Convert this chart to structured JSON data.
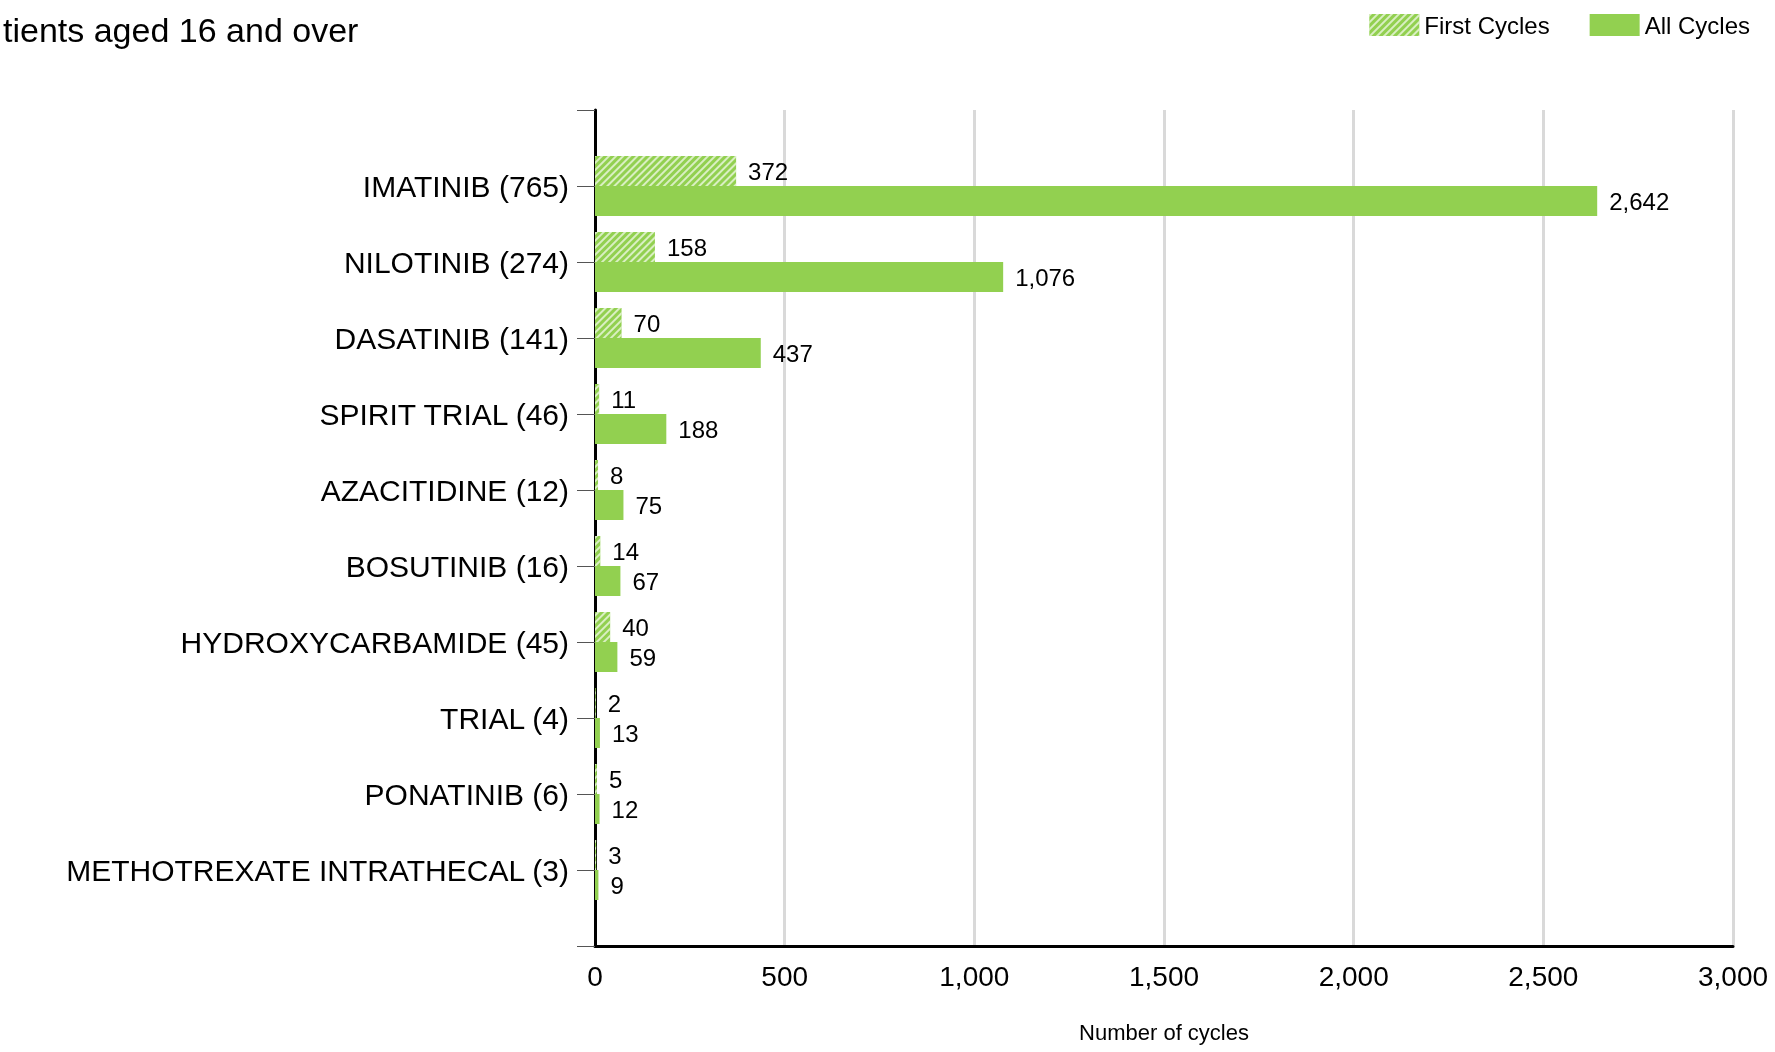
{
  "chart_data": {
    "type": "bar",
    "orientation": "horizontal",
    "title": "tients aged 16 and over",
    "xlabel": "Number of cycles",
    "categories": [
      "IMATINIB (765)",
      "NILOTINIB (274)",
      "DASATINIB (141)",
      "SPIRIT TRIAL (46)",
      "AZACITIDINE (12)",
      "BOSUTINIB (16)",
      "HYDROXYCARBAMIDE (45)",
      "TRIAL (4)",
      "PONATINIB (6)",
      "METHOTREXATE INTRATHECAL (3)"
    ],
    "series": [
      {
        "name": "First Cycles",
        "color": "#92d050",
        "values": [
          372,
          158,
          70,
          11,
          8,
          14,
          40,
          2,
          5,
          3
        ],
        "value_labels": [
          "372",
          "158",
          "70",
          "11",
          "8",
          "14",
          "40",
          "2",
          "5",
          "3"
        ]
      },
      {
        "name": "All Cycles",
        "color": "#92d050",
        "values": [
          2642,
          1076,
          437,
          188,
          75,
          67,
          59,
          13,
          12,
          9
        ],
        "value_labels": [
          "2,642",
          "1,076",
          "437",
          "188",
          "75",
          "67",
          "59",
          "13",
          "12",
          "9"
        ]
      }
    ],
    "xlim": [
      0,
      3000
    ],
    "xticks": [
      0,
      {
        "value": 500,
        "label": "500"
      },
      {
        "value": 1000,
        "label": "1,000"
      },
      {
        "value": 1500,
        "label": "1,500"
      },
      {
        "value": 2000,
        "label": "2,000"
      },
      {
        "value": 2500,
        "label": "2,500"
      },
      {
        "value": 3000,
        "label": "3,000"
      }
    ],
    "grid": "x",
    "legend": "top right"
  }
}
